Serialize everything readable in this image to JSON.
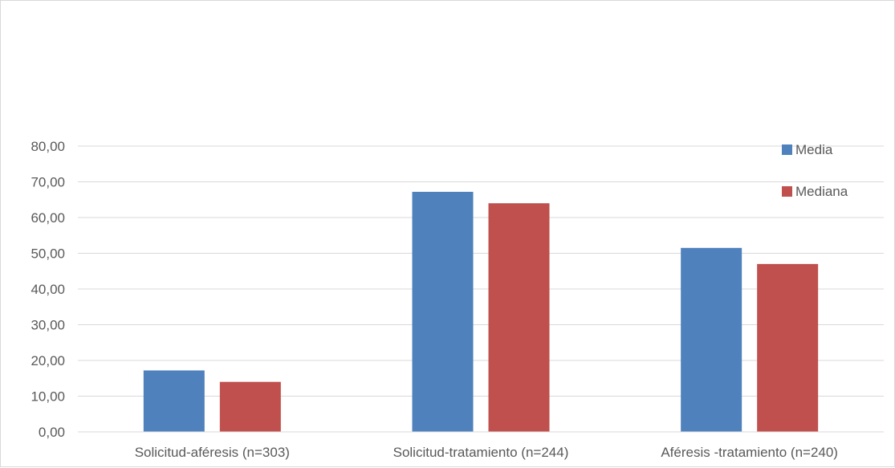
{
  "chart_data": {
    "type": "bar",
    "categories": [
      "Solicitud-aféresis (n=303)",
      "Solicitud-tratamiento (n=244)",
      "Aféresis -tratamiento (n=240)"
    ],
    "series": [
      {
        "name": "Media",
        "values": [
          17.2,
          67.2,
          51.5
        ],
        "color": "#4f81bd"
      },
      {
        "name": "Mediana",
        "values": [
          14.0,
          64.0,
          47.0
        ],
        "color": "#c0504d"
      }
    ],
    "ylim": [
      0,
      80
    ],
    "yticks": [
      0,
      10,
      20,
      30,
      40,
      50,
      60,
      70,
      80
    ],
    "ytick_labels": [
      "0,00",
      "10,00",
      "20,00",
      "30,00",
      "40,00",
      "50,00",
      "60,00",
      "70,00",
      "80,00"
    ],
    "grid": true,
    "legend_position": "top-right",
    "title": "",
    "xlabel": "",
    "ylabel": ""
  }
}
